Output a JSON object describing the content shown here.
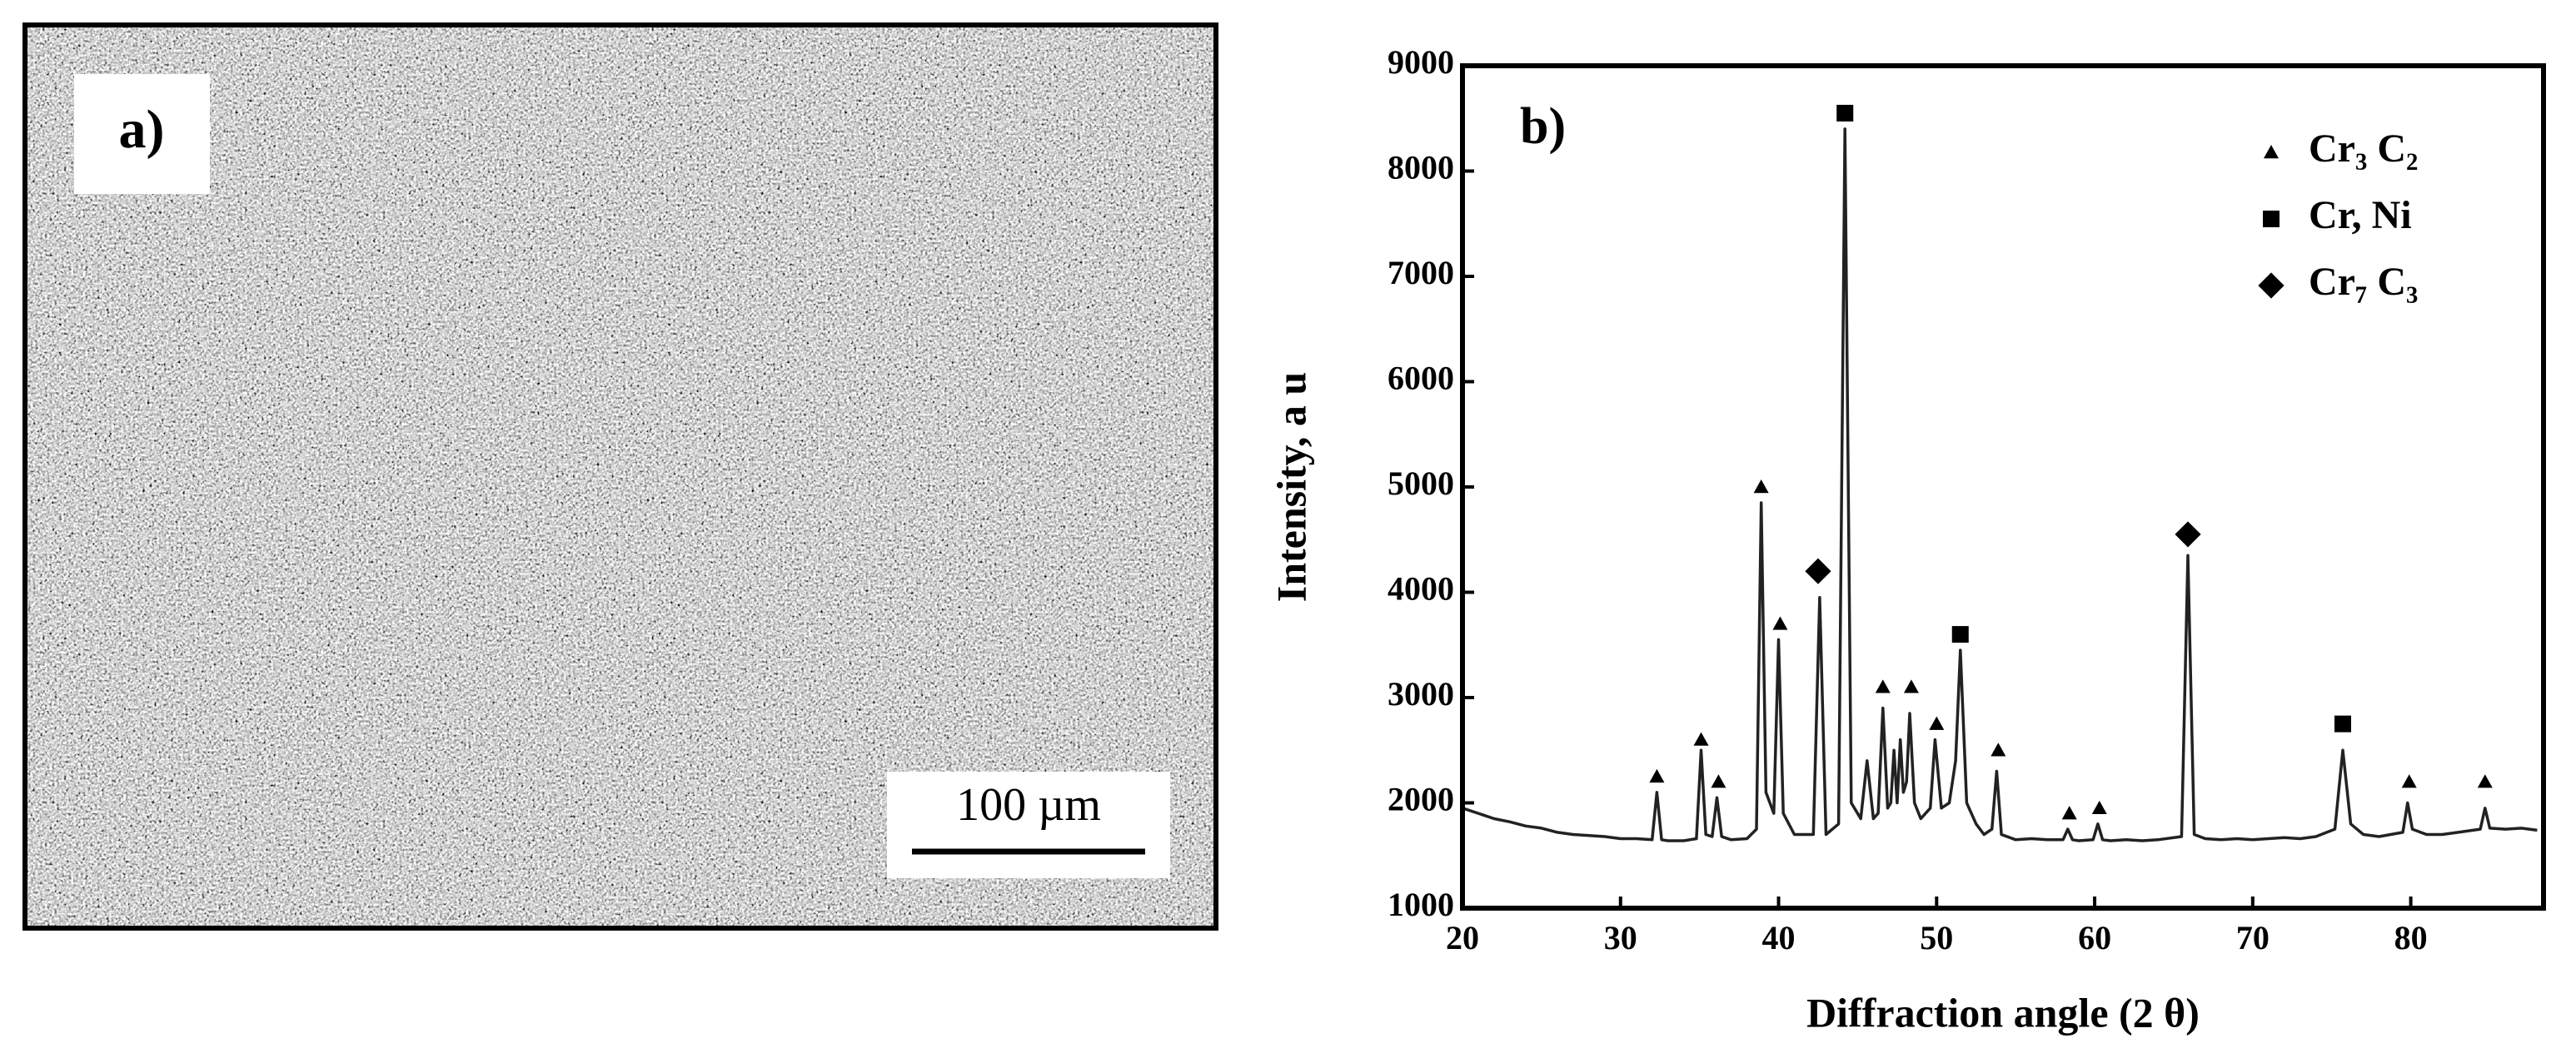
{
  "micrograph": {
    "label": "a)",
    "scale_bar": "100 µm"
  },
  "chart_data": {
    "type": "line",
    "title": "b)",
    "x_label": "Diffraction angle (2 θ)",
    "y_label": "Intensity, a u",
    "xlim": [
      20,
      88.4
    ],
    "xticks": [
      20,
      30,
      40,
      50,
      60,
      70,
      80
    ],
    "ylim": [
      1000,
      9000
    ],
    "yticks": [
      1000,
      2000,
      3000,
      4000,
      5000,
      6000,
      7000,
      8000,
      9000
    ],
    "legend": "upper right",
    "pattern": {
      "color": "#222222",
      "x": [
        20,
        21,
        22,
        23,
        24,
        25,
        26,
        27,
        28,
        29,
        30,
        31,
        32.0,
        32.3,
        32.6,
        33,
        34,
        34.8,
        35.1,
        35.4,
        35.8,
        36.1,
        36.4,
        37,
        38,
        38.6,
        38.9,
        39.2,
        39.7,
        40.0,
        40.3,
        41,
        42.2,
        42.6,
        43.0,
        43.8,
        44.2,
        44.6,
        45.2,
        45.6,
        46.0,
        46.3,
        46.6,
        46.9,
        47.1,
        47.3,
        47.5,
        47.7,
        47.9,
        48.1,
        48.3,
        48.6,
        49,
        49.6,
        49.9,
        50.3,
        50.8,
        51.2,
        51.5,
        51.9,
        52.5,
        53,
        53.5,
        53.8,
        54.1,
        55,
        56,
        57,
        58.0,
        58.3,
        58.6,
        59,
        59.9,
        60.2,
        60.5,
        61,
        62,
        63,
        64,
        65.5,
        65.9,
        66.3,
        67,
        68,
        69,
        70,
        71,
        72,
        73,
        74,
        75.2,
        75.7,
        76.2,
        77,
        78,
        79.5,
        79.8,
        80.1,
        81,
        82,
        83,
        84.4,
        84.7,
        85,
        86,
        87,
        88
      ],
      "values": [
        1950,
        1900,
        1850,
        1820,
        1780,
        1760,
        1720,
        1700,
        1690,
        1680,
        1660,
        1660,
        1650,
        2100,
        1650,
        1640,
        1640,
        1660,
        2500,
        1700,
        1680,
        2050,
        1680,
        1650,
        1660,
        1750,
        4850,
        2100,
        1900,
        3550,
        1900,
        1700,
        1700,
        3950,
        1700,
        1800,
        8400,
        2000,
        1850,
        2400,
        1850,
        1900,
        2900,
        1950,
        2000,
        2500,
        2000,
        2600,
        2100,
        2200,
        2850,
        2000,
        1850,
        1950,
        2600,
        1950,
        2000,
        2400,
        3450,
        2000,
        1800,
        1700,
        1750,
        2300,
        1700,
        1650,
        1660,
        1650,
        1650,
        1750,
        1650,
        1640,
        1650,
        1800,
        1650,
        1640,
        1650,
        1640,
        1650,
        1680,
        4350,
        1700,
        1660,
        1650,
        1660,
        1650,
        1660,
        1670,
        1660,
        1680,
        1750,
        2500,
        1800,
        1700,
        1680,
        1720,
        2000,
        1750,
        1700,
        1700,
        1720,
        1750,
        1950,
        1760,
        1750,
        1760,
        1740
      ]
    },
    "phases": [
      {
        "name": "Cr₃ C₂",
        "marker": "triangle",
        "color": "#000000",
        "x": [
          32.3,
          35.1,
          36.2,
          38.9,
          40.1,
          46.6,
          48.4,
          50.0,
          53.9,
          58.4,
          60.3,
          79.9,
          84.7
        ],
        "values": [
          2250,
          2600,
          2200,
          5000,
          3700,
          3100,
          3100,
          2750,
          2500,
          1900,
          1950,
          2200,
          2200
        ]
      },
      {
        "name": "Cr, Ni",
        "marker": "square",
        "color": "#000000",
        "x": [
          44.2,
          51.5,
          75.7
        ],
        "values": [
          8550,
          3600,
          2750
        ]
      },
      {
        "name": "Cr₇ C₃",
        "marker": "diamond",
        "color": "#000000",
        "x": [
          42.5,
          65.9
        ],
        "values": [
          4200,
          4550
        ]
      }
    ]
  }
}
